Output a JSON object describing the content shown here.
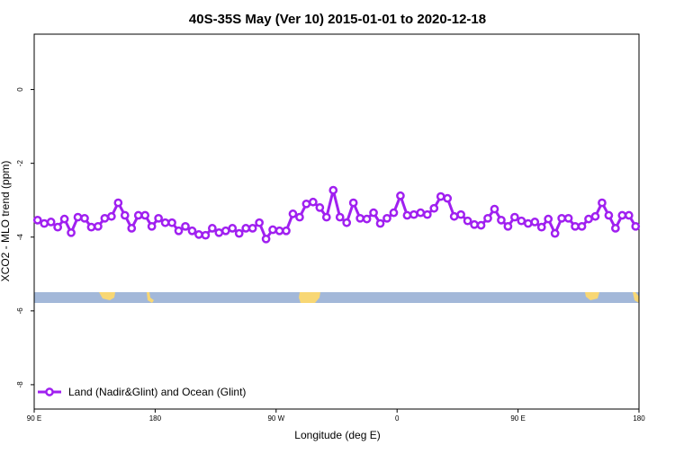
{
  "chart_data": {
    "type": "line",
    "title": "40S-35S May (Ver 10)   2015-01-01 to 2020-12-18",
    "x_label": "Longitude (deg E)",
    "y_label": "XCO2 - MLO trend (ppm)",
    "x": [
      92.5,
      97.5,
      102.5,
      107.5,
      112.5,
      117.5,
      122.5,
      127.5,
      132.5,
      137.5,
      142.5,
      147.5,
      152.5,
      157.5,
      162.5,
      167.5,
      172.5,
      177.5,
      182.5,
      187.5,
      192.5,
      197.5,
      202.5,
      207.5,
      212.5,
      217.5,
      222.5,
      227.5,
      232.5,
      237.5,
      242.5,
      247.5,
      252.5,
      257.5,
      262.5,
      267.5,
      272.5,
      277.5,
      282.5,
      287.5,
      292.5,
      297.5,
      302.5,
      307.5,
      312.5,
      317.5,
      322.5,
      327.5,
      332.5,
      337.5,
      342.5,
      347.5,
      352.5,
      357.5,
      362.5,
      367.5,
      372.5,
      377.5,
      382.5,
      387.5,
      392.5,
      397.5,
      402.5,
      407.5,
      412.5,
      417.5,
      422.5,
      427.5,
      432.5,
      437.5,
      442.5,
      447.5,
      452.5,
      457.5,
      462.5,
      467.5,
      472.5,
      477.5,
      482.5,
      487.5,
      492.5,
      497.5,
      502.5,
      507.5,
      512.5,
      517.5,
      522.5,
      527.5,
      532.5,
      537.5
    ],
    "series": [
      {
        "name": "Land (Nadir&Glint) and Ocean (Glint)",
        "color": "#a020f0",
        "values": [
          -3.54,
          -3.63,
          -3.59,
          -3.73,
          -3.51,
          -3.88,
          -3.46,
          -3.49,
          -3.73,
          -3.71,
          -3.49,
          -3.44,
          -3.07,
          -3.41,
          -3.76,
          -3.41,
          -3.41,
          -3.71,
          -3.49,
          -3.61,
          -3.61,
          -3.83,
          -3.71,
          -3.83,
          -3.93,
          -3.95,
          -3.76,
          -3.88,
          -3.83,
          -3.76,
          -3.9,
          -3.76,
          -3.76,
          -3.61,
          -4.05,
          -3.8,
          -3.83,
          -3.83,
          -3.37,
          -3.46,
          -3.1,
          -3.05,
          -3.2,
          -3.46,
          -2.73,
          -3.46,
          -3.61,
          -3.07,
          -3.49,
          -3.51,
          -3.34,
          -3.63,
          -3.49,
          -3.34,
          -2.88,
          -3.41,
          -3.39,
          -3.34,
          -3.39,
          -3.22,
          -2.9,
          -2.95,
          -3.44,
          -3.39,
          -3.56,
          -3.66,
          -3.68,
          -3.49,
          -3.24,
          -3.54,
          -3.71,
          -3.46,
          -3.56,
          -3.63,
          -3.59,
          -3.73,
          -3.51,
          -3.9,
          -3.49,
          -3.49,
          -3.71,
          -3.71,
          -3.51,
          -3.44,
          -3.07,
          -3.41,
          -3.76,
          -3.41,
          -3.41,
          -3.71
        ]
      }
    ],
    "xlim": [
      90,
      540
    ],
    "xticks": [
      {
        "value": 90,
        "label": "90 E"
      },
      180,
      {
        "value": 270,
        "label": "90 W"
      },
      {
        "value": 360,
        "label": "0"
      },
      {
        "value": 450,
        "label": "90 E"
      },
      {
        "value": 540,
        "label": "180"
      }
    ],
    "ylim": [
      -8.66,
      1.5
    ],
    "yticks": [
      0,
      -2,
      -4,
      -6,
      -8
    ],
    "legend": "lower left"
  }
}
